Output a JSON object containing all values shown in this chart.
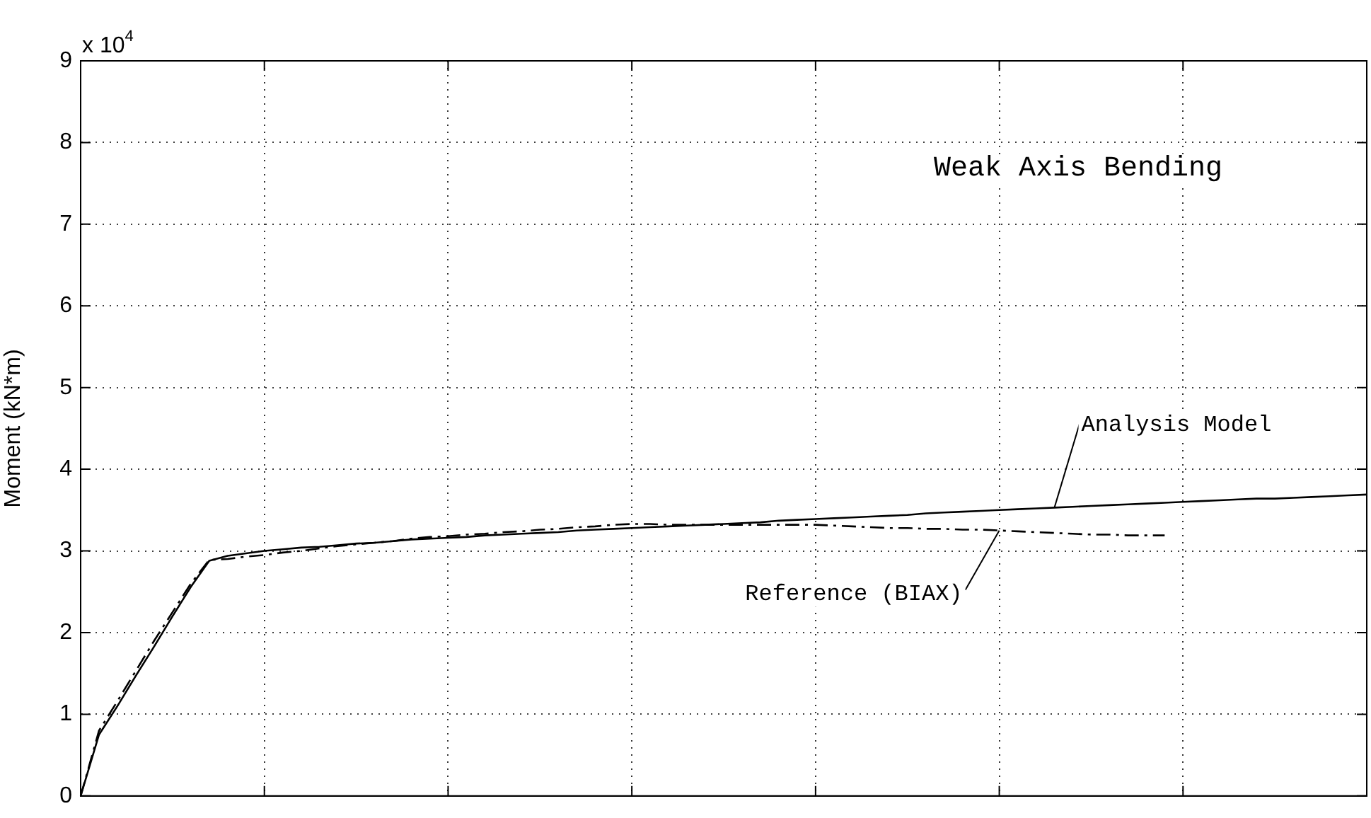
{
  "chart_data": {
    "type": "line",
    "ylabel": "Moment (kN*m)",
    "annotations": [
      "x 10$^{4}$",
      "Weak Axis Bending"
    ],
    "categories": [
      null,
      null,
      null,
      null,
      null,
      null,
      null,
      null,
      null,
      null,
      null,
      null,
      null,
      null,
      null,
      null,
      null,
      null,
      null,
      null,
      null,
      null,
      null,
      null,
      null,
      null,
      null,
      null,
      null,
      null,
      null,
      null,
      null,
      null,
      null,
      null,
      null,
      null,
      null,
      null,
      null,
      null,
      null,
      null,
      null,
      null,
      null,
      null,
      null,
      null,
      null,
      null,
      null,
      null,
      null,
      null,
      null,
      null,
      null,
      null,
      null,
      null,
      null,
      null,
      null,
      null,
      null,
      null,
      null,
      null,
      null
    ],
    "series": [
      {
        "name": "Analysis Model",
        "color": "#000000",
        "line_style": "solid",
        "values": [
          0,
          0.75,
          1.1,
          1.47,
          1.83,
          2.2,
          2.56,
          2.88,
          2.94,
          2.97,
          3.0,
          3.02,
          3.04,
          3.05,
          3.07,
          3.09,
          3.1,
          3.12,
          3.14,
          3.15,
          3.16,
          3.17,
          3.19,
          3.2,
          3.21,
          3.22,
          3.23,
          3.25,
          3.26,
          3.27,
          3.28,
          3.29,
          3.3,
          3.31,
          3.32,
          3.33,
          3.34,
          3.35,
          3.37,
          3.38,
          3.39,
          3.4,
          3.41,
          3.42,
          3.43,
          3.44,
          3.46,
          3.47,
          3.48,
          3.49,
          3.5,
          3.51,
          3.52,
          3.53,
          3.54,
          3.55,
          3.56,
          3.57,
          3.58,
          3.59,
          3.6,
          3.61,
          3.62,
          3.63,
          3.64,
          3.64,
          3.65,
          3.66,
          3.67,
          3.68,
          3.69
        ]
      },
      {
        "name": "Reference (BIAX)",
        "color": "#000000",
        "line_style": "dashed",
        "values": [
          0,
          0.8,
          1.16,
          1.53,
          1.9,
          2.25,
          2.6,
          2.89,
          2.9,
          2.93,
          2.95,
          2.98,
          3.0,
          3.03,
          3.06,
          3.08,
          3.1,
          3.12,
          3.15,
          3.17,
          3.18,
          3.2,
          3.21,
          3.23,
          3.24,
          3.26,
          3.27,
          3.29,
          3.3,
          3.32,
          3.33,
          3.33,
          3.32,
          3.32,
          3.32,
          3.32,
          3.32,
          3.32,
          3.32,
          3.32,
          3.32,
          3.31,
          3.3,
          3.29,
          3.28,
          3.28,
          3.27,
          3.27,
          3.26,
          3.26,
          3.25,
          3.24,
          3.23,
          3.22,
          3.21,
          3.2,
          3.2,
          3.19,
          3.19,
          3.19,
          null,
          null,
          null,
          null,
          null,
          null,
          null,
          null,
          null,
          null,
          null
        ]
      }
    ],
    "ylim": [
      0,
      9
    ],
    "yticks": [
      0,
      1,
      2,
      3,
      4,
      5,
      6,
      7,
      8,
      9
    ],
    "tick_labels": "y",
    "grid": true,
    "legend": false,
    "marker": "none"
  }
}
